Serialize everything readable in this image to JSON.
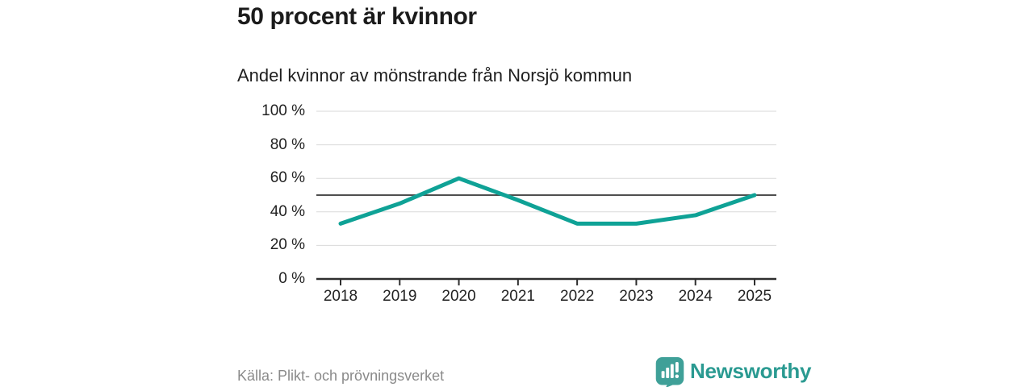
{
  "header": {
    "title": "50 procent är kvinnor",
    "subtitle": "Andel kvinnor av mönstrande från Norsjö kommun"
  },
  "footer": {
    "source": "Källa: Plikt- och prövningsverket",
    "brand_name": "Newsworthy"
  },
  "colors": {
    "line": "#0FA296",
    "grid": "#DADADA",
    "reference_line": "#4F4F4F",
    "axis": "#2E2E2E",
    "tick_text": "#222222",
    "source_text": "#8A8A8A",
    "brand_teal": "#2A9A91",
    "logo_teal": "#3FA098"
  },
  "chart_data": {
    "type": "line",
    "title": "50 procent är kvinnor",
    "subtitle": "Andel kvinnor av mönstrande från Norsjö kommun",
    "categories": [
      "2018",
      "2019",
      "2020",
      "2021",
      "2022",
      "2023",
      "2024",
      "2025"
    ],
    "series": [
      {
        "name": "Andel kvinnor av mönstrande",
        "color": "#0FA296",
        "values": [
          33,
          45,
          60,
          47,
          33,
          33,
          38,
          50
        ]
      }
    ],
    "xlabel": "",
    "ylabel": "",
    "ylim": [
      0,
      100
    ],
    "y_ticks": [
      {
        "value": 100,
        "label": "100 %"
      },
      {
        "value": 80,
        "label": "80 %"
      },
      {
        "value": 60,
        "label": "60 %"
      },
      {
        "value": 40,
        "label": "40 %"
      },
      {
        "value": 20,
        "label": "20 %"
      },
      {
        "value": 0,
        "label": "0 %"
      }
    ],
    "reference_line": {
      "value": 50
    },
    "grid": true,
    "legend": "none",
    "markers": false
  }
}
